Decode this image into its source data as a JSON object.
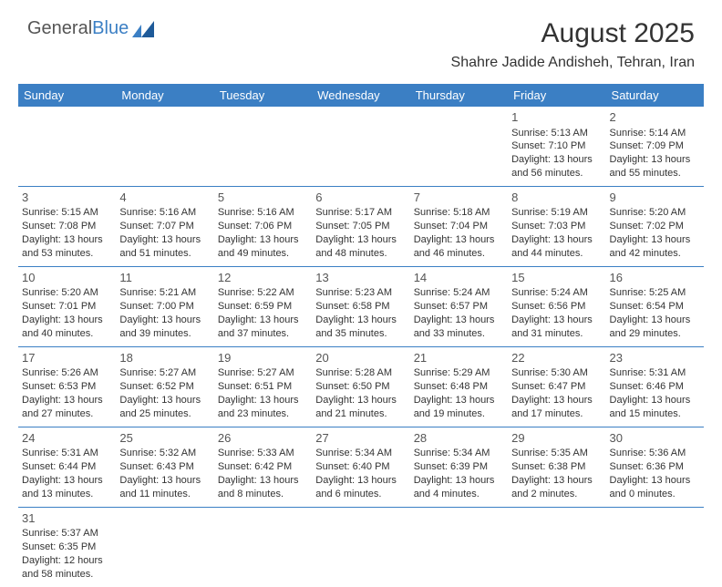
{
  "brand": {
    "part1": "General",
    "part2": "Blue"
  },
  "title": "August 2025",
  "location": "Shahre Jadide Andisheh, Tehran, Iran",
  "colors": {
    "header_bg": "#3b7fc4",
    "header_text": "#ffffff",
    "cell_border": "#3b7fc4",
    "text": "#333333",
    "background": "#ffffff"
  },
  "daysOfWeek": [
    "Sunday",
    "Monday",
    "Tuesday",
    "Wednesday",
    "Thursday",
    "Friday",
    "Saturday"
  ],
  "weeks": [
    [
      null,
      null,
      null,
      null,
      null,
      {
        "n": "1",
        "sr": "Sunrise: 5:13 AM",
        "ss": "Sunset: 7:10 PM",
        "d1": "Daylight: 13 hours",
        "d2": "and 56 minutes."
      },
      {
        "n": "2",
        "sr": "Sunrise: 5:14 AM",
        "ss": "Sunset: 7:09 PM",
        "d1": "Daylight: 13 hours",
        "d2": "and 55 minutes."
      }
    ],
    [
      {
        "n": "3",
        "sr": "Sunrise: 5:15 AM",
        "ss": "Sunset: 7:08 PM",
        "d1": "Daylight: 13 hours",
        "d2": "and 53 minutes."
      },
      {
        "n": "4",
        "sr": "Sunrise: 5:16 AM",
        "ss": "Sunset: 7:07 PM",
        "d1": "Daylight: 13 hours",
        "d2": "and 51 minutes."
      },
      {
        "n": "5",
        "sr": "Sunrise: 5:16 AM",
        "ss": "Sunset: 7:06 PM",
        "d1": "Daylight: 13 hours",
        "d2": "and 49 minutes."
      },
      {
        "n": "6",
        "sr": "Sunrise: 5:17 AM",
        "ss": "Sunset: 7:05 PM",
        "d1": "Daylight: 13 hours",
        "d2": "and 48 minutes."
      },
      {
        "n": "7",
        "sr": "Sunrise: 5:18 AM",
        "ss": "Sunset: 7:04 PM",
        "d1": "Daylight: 13 hours",
        "d2": "and 46 minutes."
      },
      {
        "n": "8",
        "sr": "Sunrise: 5:19 AM",
        "ss": "Sunset: 7:03 PM",
        "d1": "Daylight: 13 hours",
        "d2": "and 44 minutes."
      },
      {
        "n": "9",
        "sr": "Sunrise: 5:20 AM",
        "ss": "Sunset: 7:02 PM",
        "d1": "Daylight: 13 hours",
        "d2": "and 42 minutes."
      }
    ],
    [
      {
        "n": "10",
        "sr": "Sunrise: 5:20 AM",
        "ss": "Sunset: 7:01 PM",
        "d1": "Daylight: 13 hours",
        "d2": "and 40 minutes."
      },
      {
        "n": "11",
        "sr": "Sunrise: 5:21 AM",
        "ss": "Sunset: 7:00 PM",
        "d1": "Daylight: 13 hours",
        "d2": "and 39 minutes."
      },
      {
        "n": "12",
        "sr": "Sunrise: 5:22 AM",
        "ss": "Sunset: 6:59 PM",
        "d1": "Daylight: 13 hours",
        "d2": "and 37 minutes."
      },
      {
        "n": "13",
        "sr": "Sunrise: 5:23 AM",
        "ss": "Sunset: 6:58 PM",
        "d1": "Daylight: 13 hours",
        "d2": "and 35 minutes."
      },
      {
        "n": "14",
        "sr": "Sunrise: 5:24 AM",
        "ss": "Sunset: 6:57 PM",
        "d1": "Daylight: 13 hours",
        "d2": "and 33 minutes."
      },
      {
        "n": "15",
        "sr": "Sunrise: 5:24 AM",
        "ss": "Sunset: 6:56 PM",
        "d1": "Daylight: 13 hours",
        "d2": "and 31 minutes."
      },
      {
        "n": "16",
        "sr": "Sunrise: 5:25 AM",
        "ss": "Sunset: 6:54 PM",
        "d1": "Daylight: 13 hours",
        "d2": "and 29 minutes."
      }
    ],
    [
      {
        "n": "17",
        "sr": "Sunrise: 5:26 AM",
        "ss": "Sunset: 6:53 PM",
        "d1": "Daylight: 13 hours",
        "d2": "and 27 minutes."
      },
      {
        "n": "18",
        "sr": "Sunrise: 5:27 AM",
        "ss": "Sunset: 6:52 PM",
        "d1": "Daylight: 13 hours",
        "d2": "and 25 minutes."
      },
      {
        "n": "19",
        "sr": "Sunrise: 5:27 AM",
        "ss": "Sunset: 6:51 PM",
        "d1": "Daylight: 13 hours",
        "d2": "and 23 minutes."
      },
      {
        "n": "20",
        "sr": "Sunrise: 5:28 AM",
        "ss": "Sunset: 6:50 PM",
        "d1": "Daylight: 13 hours",
        "d2": "and 21 minutes."
      },
      {
        "n": "21",
        "sr": "Sunrise: 5:29 AM",
        "ss": "Sunset: 6:48 PM",
        "d1": "Daylight: 13 hours",
        "d2": "and 19 minutes."
      },
      {
        "n": "22",
        "sr": "Sunrise: 5:30 AM",
        "ss": "Sunset: 6:47 PM",
        "d1": "Daylight: 13 hours",
        "d2": "and 17 minutes."
      },
      {
        "n": "23",
        "sr": "Sunrise: 5:31 AM",
        "ss": "Sunset: 6:46 PM",
        "d1": "Daylight: 13 hours",
        "d2": "and 15 minutes."
      }
    ],
    [
      {
        "n": "24",
        "sr": "Sunrise: 5:31 AM",
        "ss": "Sunset: 6:44 PM",
        "d1": "Daylight: 13 hours",
        "d2": "and 13 minutes."
      },
      {
        "n": "25",
        "sr": "Sunrise: 5:32 AM",
        "ss": "Sunset: 6:43 PM",
        "d1": "Daylight: 13 hours",
        "d2": "and 11 minutes."
      },
      {
        "n": "26",
        "sr": "Sunrise: 5:33 AM",
        "ss": "Sunset: 6:42 PM",
        "d1": "Daylight: 13 hours",
        "d2": "and 8 minutes."
      },
      {
        "n": "27",
        "sr": "Sunrise: 5:34 AM",
        "ss": "Sunset: 6:40 PM",
        "d1": "Daylight: 13 hours",
        "d2": "and 6 minutes."
      },
      {
        "n": "28",
        "sr": "Sunrise: 5:34 AM",
        "ss": "Sunset: 6:39 PM",
        "d1": "Daylight: 13 hours",
        "d2": "and 4 minutes."
      },
      {
        "n": "29",
        "sr": "Sunrise: 5:35 AM",
        "ss": "Sunset: 6:38 PM",
        "d1": "Daylight: 13 hours",
        "d2": "and 2 minutes."
      },
      {
        "n": "30",
        "sr": "Sunrise: 5:36 AM",
        "ss": "Sunset: 6:36 PM",
        "d1": "Daylight: 13 hours",
        "d2": "and 0 minutes."
      }
    ],
    [
      {
        "n": "31",
        "sr": "Sunrise: 5:37 AM",
        "ss": "Sunset: 6:35 PM",
        "d1": "Daylight: 12 hours",
        "d2": "and 58 minutes."
      },
      null,
      null,
      null,
      null,
      null,
      null
    ]
  ]
}
